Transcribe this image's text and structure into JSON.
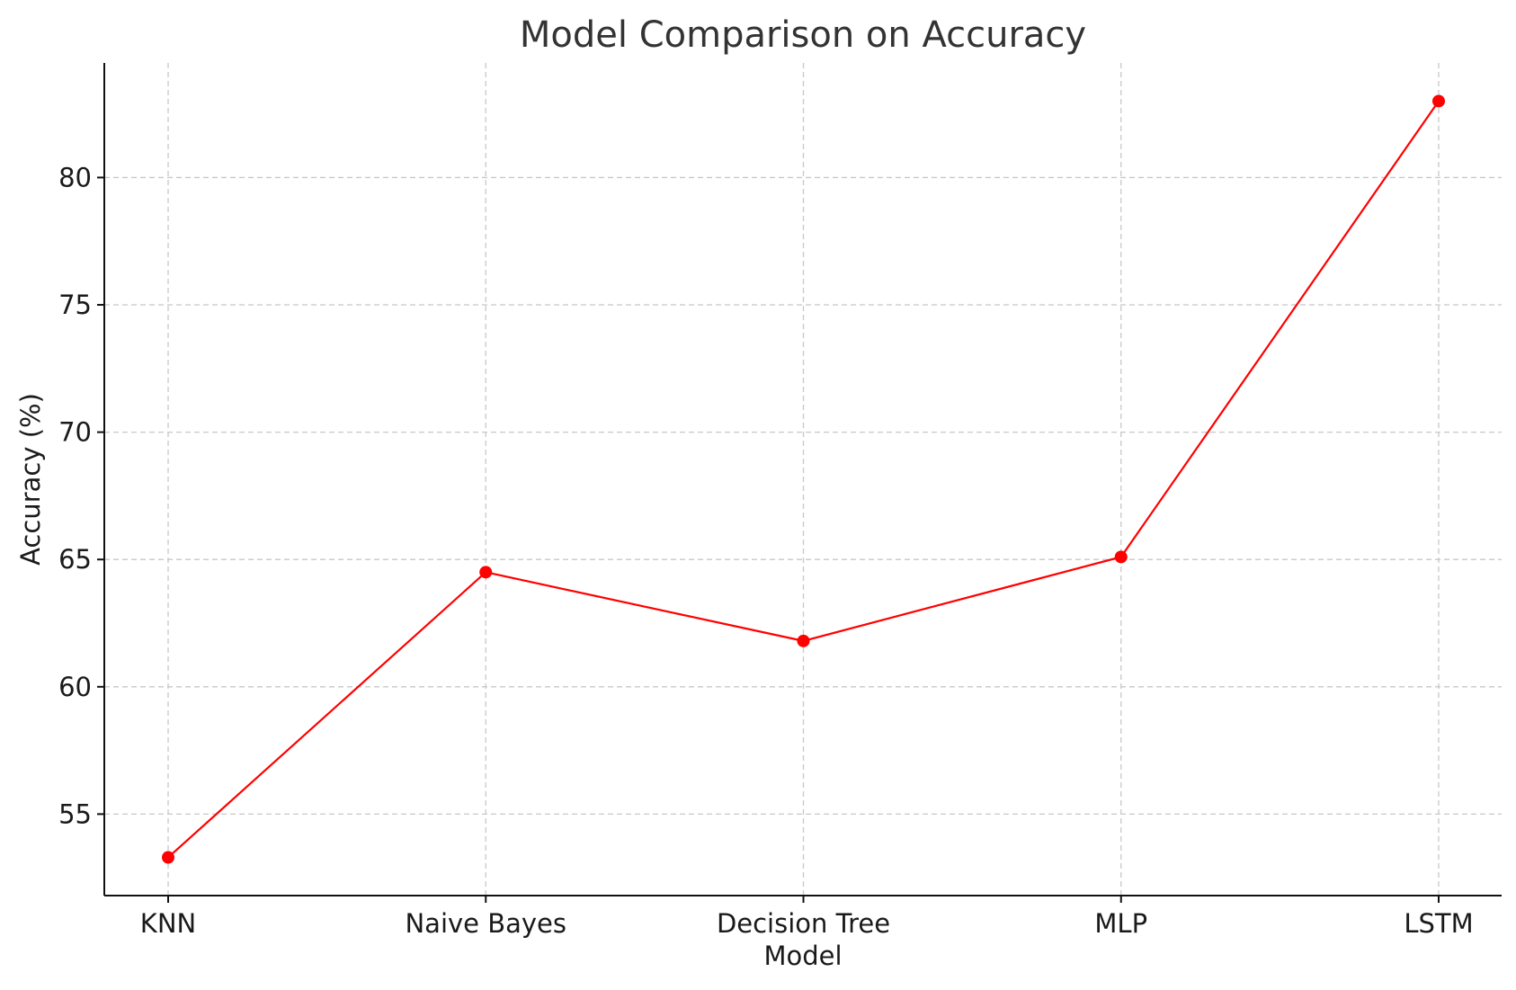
{
  "chart_data": {
    "type": "line",
    "title": "Model Comparison on Accuracy",
    "xlabel": "Model",
    "ylabel": "Accuracy (%)",
    "categories": [
      "KNN",
      "Naive Bayes",
      "Decision Tree",
      "MLP",
      "LSTM"
    ],
    "series": [
      {
        "values": [
          53.3,
          64.5,
          61.8,
          65.1,
          83.0
        ],
        "color": "#ff0000",
        "marker": "circle"
      }
    ],
    "ylim": [
      51.8,
      84.5
    ],
    "yticks": [
      55,
      60,
      65,
      70,
      75,
      80
    ],
    "grid": true
  }
}
